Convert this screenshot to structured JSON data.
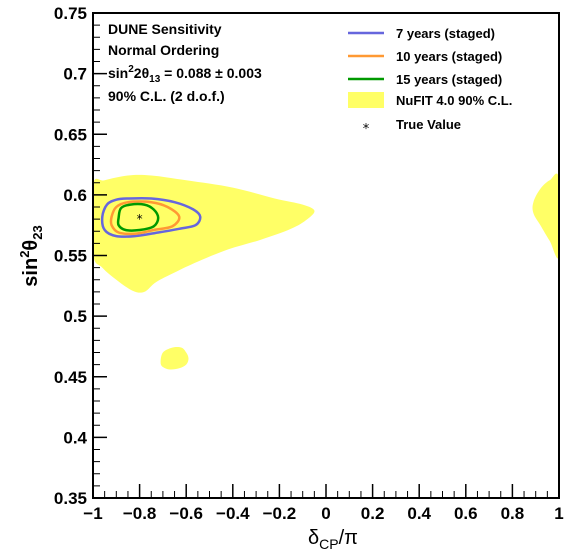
{
  "chart_data": {
    "type": "line",
    "title": "",
    "xlim": [
      -1,
      1
    ],
    "ylim": [
      0.35,
      0.75
    ],
    "x_ticks": [
      -1,
      -0.8,
      -0.6,
      -0.4,
      -0.2,
      0,
      0.2,
      0.4,
      0.6,
      0.8,
      1
    ],
    "x_tick_labels": [
      "−1",
      "−0.8",
      "−0.6",
      "−0.4",
      "−0.2",
      "0",
      "0.2",
      "0.4",
      "0.6",
      "0.8",
      "1"
    ],
    "y_ticks": [
      0.35,
      0.4,
      0.45,
      0.5,
      0.55,
      0.6,
      0.65,
      0.7,
      0.75
    ],
    "y_tick_labels": [
      "0.35",
      "0.4",
      "0.45",
      "0.5",
      "0.55",
      "0.6",
      "0.65",
      "0.7",
      "0.75"
    ],
    "xlabel": {
      "main": "δ",
      "sub": "CP",
      "tail": "/π"
    },
    "ylabel": {
      "main": "sin",
      "sup": "2",
      "theta": "θ",
      "sub": "23"
    },
    "annotations": {
      "line1": "DUNE Sensitivity",
      "line2": "Normal Ordering",
      "line3": {
        "pre": "sin",
        "sup": "2",
        "mid": "2θ",
        "sub": "13",
        "post": " = 0.088 ± 0.003"
      },
      "line4": "90% C.L. (2 d.o.f.)"
    },
    "legend_position": "top-right",
    "grid": false,
    "true_value": {
      "label": "True Value",
      "x": -0.8,
      "y": 0.58,
      "marker": "*"
    },
    "series": [
      {
        "name": "7 years (staged)",
        "color": "#6666dd",
        "points": [
          [
            -0.96,
            0.582
          ],
          [
            -0.94,
            0.592
          ],
          [
            -0.9,
            0.596
          ],
          [
            -0.85,
            0.597
          ],
          [
            -0.75,
            0.597
          ],
          [
            -0.65,
            0.594
          ],
          [
            -0.57,
            0.588
          ],
          [
            -0.54,
            0.582
          ],
          [
            -0.56,
            0.575
          ],
          [
            -0.63,
            0.572
          ],
          [
            -0.72,
            0.569
          ],
          [
            -0.82,
            0.566
          ],
          [
            -0.9,
            0.566
          ],
          [
            -0.95,
            0.571
          ]
        ]
      },
      {
        "name": "10 years (staged)",
        "color": "#ff9933",
        "points": [
          [
            -0.92,
            0.582
          ],
          [
            -0.9,
            0.59
          ],
          [
            -0.85,
            0.594
          ],
          [
            -0.75,
            0.594
          ],
          [
            -0.68,
            0.59
          ],
          [
            -0.63,
            0.582
          ],
          [
            -0.66,
            0.574
          ],
          [
            -0.74,
            0.571
          ],
          [
            -0.82,
            0.568
          ],
          [
            -0.89,
            0.569
          ],
          [
            -0.92,
            0.575
          ]
        ]
      },
      {
        "name": "15 years (staged)",
        "color": "#009900",
        "points": [
          [
            -0.89,
            0.581
          ],
          [
            -0.88,
            0.589
          ],
          [
            -0.84,
            0.592
          ],
          [
            -0.78,
            0.592
          ],
          [
            -0.74,
            0.588
          ],
          [
            -0.72,
            0.581
          ],
          [
            -0.74,
            0.574
          ],
          [
            -0.8,
            0.571
          ],
          [
            -0.86,
            0.571
          ],
          [
            -0.89,
            0.575
          ]
        ]
      }
    ],
    "nufit": {
      "name": "NuFIT 4.0 90% C.L.",
      "color": "#ffff66",
      "regions": [
        [
          [
            -1,
            0.552
          ],
          [
            -1,
            0.608
          ],
          [
            -0.95,
            0.612
          ],
          [
            -0.85,
            0.616
          ],
          [
            -0.75,
            0.616
          ],
          [
            -0.6,
            0.612
          ],
          [
            -0.4,
            0.606
          ],
          [
            -0.22,
            0.597
          ],
          [
            -0.1,
            0.592
          ],
          [
            -0.05,
            0.587
          ],
          [
            -0.08,
            0.58
          ],
          [
            -0.15,
            0.572
          ],
          [
            -0.28,
            0.563
          ],
          [
            -0.42,
            0.555
          ],
          [
            -0.55,
            0.545
          ],
          [
            -0.65,
            0.536
          ],
          [
            -0.73,
            0.528
          ],
          [
            -0.78,
            0.52
          ],
          [
            -0.83,
            0.521
          ],
          [
            -0.9,
            0.53
          ],
          [
            -0.96,
            0.54
          ]
        ],
        [
          [
            -0.71,
            0.462
          ],
          [
            -0.7,
            0.47
          ],
          [
            -0.66,
            0.474
          ],
          [
            -0.62,
            0.474
          ],
          [
            -0.6,
            0.47
          ],
          [
            -0.59,
            0.465
          ],
          [
            -0.6,
            0.46
          ],
          [
            -0.63,
            0.457
          ],
          [
            -0.67,
            0.456
          ],
          [
            -0.7,
            0.458
          ]
        ],
        [
          [
            1,
            0.55
          ],
          [
            1,
            0.613
          ],
          [
            0.96,
            0.612
          ],
          [
            0.92,
            0.605
          ],
          [
            0.89,
            0.594
          ],
          [
            0.89,
            0.585
          ],
          [
            0.92,
            0.575
          ],
          [
            0.96,
            0.562
          ]
        ]
      ]
    }
  }
}
